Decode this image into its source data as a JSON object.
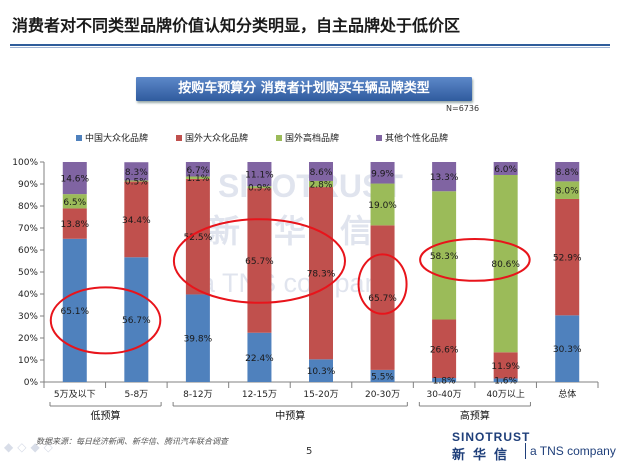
{
  "page": {
    "title": "消费者对不同类型品牌价值认知分类明显，自主品牌处于低价区",
    "banner": "按购车预算分  消费者计划购买车辆品牌类型",
    "sample": "N=6736",
    "source": "数据来源：每日经济新闻、新华信、腾讯汽车联合调查",
    "page_number": "5",
    "logo_en": "SINOTRUST",
    "logo_cn": "新华信",
    "logo_tns": "a TNS company",
    "watermark_en": "SINOTRUST",
    "watermark_cn": "新华信",
    "watermark_tns": "a TNS company"
  },
  "chart_data": {
    "type": "bar",
    "stacked": true,
    "categories": [
      "5万及以下",
      "5-8万",
      "8-12万",
      "12-15万",
      "15-20万",
      "20-30万",
      "30-40万",
      "40万以上",
      "总体"
    ],
    "series": [
      {
        "name": "中国大众化品牌",
        "color": "#4f81bd",
        "values": [
          65.1,
          56.7,
          39.8,
          22.4,
          10.3,
          5.5,
          1.8,
          1.6,
          30.3
        ]
      },
      {
        "name": "国外大众化品牌",
        "color": "#c0504d",
        "values": [
          13.8,
          34.4,
          52.5,
          65.7,
          78.3,
          65.7,
          26.6,
          11.9,
          52.9
        ]
      },
      {
        "name": "国外高档品牌",
        "color": "#9bbb59",
        "values": [
          6.5,
          0.5,
          1.1,
          0.9,
          2.8,
          19.0,
          58.3,
          80.6,
          8.0
        ]
      },
      {
        "name": "其他个性化品牌",
        "color": "#8064a2",
        "values": [
          14.6,
          8.3,
          6.7,
          11.1,
          8.6,
          9.9,
          13.3,
          6.0,
          8.8
        ]
      }
    ],
    "labels": [
      [
        "65.1%",
        "56.7%",
        "39.8%",
        "22.4%",
        "10.3%",
        "5.5%",
        "1.8%",
        "1.6%",
        "30.3%"
      ],
      [
        "13.8%",
        "34.4%",
        "52.5%",
        "65.7%",
        "78.3%",
        "65.7%",
        "26.6%",
        "11.9%",
        "52.9%"
      ],
      [
        "6.5%",
        "0.5%",
        "1.1%",
        "0.9%",
        "2.8%",
        "19.0%",
        "58.3%",
        "80.6%",
        "8.0%"
      ],
      [
        "14.6%",
        "8.3%",
        "6.7%",
        "11.1%",
        "8.6%",
        "9.9%",
        "13.3%",
        "6.0%",
        "8.8%"
      ]
    ],
    "yticks": [
      "0%",
      "10%",
      "20%",
      "30%",
      "40%",
      "50%",
      "60%",
      "70%",
      "80%",
      "90%",
      "100%"
    ],
    "ylim": [
      0,
      100
    ],
    "legend_position": "top",
    "groups": [
      {
        "label": "低预算",
        "from": 0,
        "to": 1
      },
      {
        "label": "中预算",
        "from": 2,
        "to": 5
      },
      {
        "label": "高预算",
        "from": 6,
        "to": 7
      }
    ],
    "highlights": [
      {
        "from": 0,
        "to": 1,
        "low": 13,
        "high": 43
      },
      {
        "from": 2,
        "to": 4,
        "low": 36,
        "high": 74
      },
      {
        "from": 5,
        "to": 5,
        "low": 31,
        "high": 58
      },
      {
        "from": 6,
        "to": 7,
        "low": 46,
        "high": 65
      }
    ],
    "grid": false
  }
}
